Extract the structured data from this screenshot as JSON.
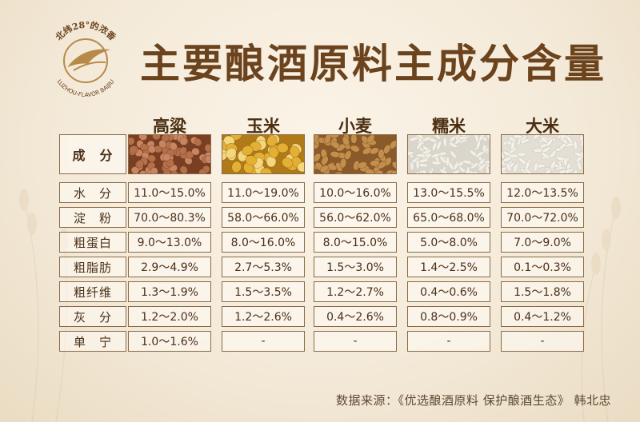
{
  "logo": {
    "arc_text": "北纬28°的浓香",
    "brand_text": "LUZHOU-FLAVOR BAIJIU",
    "colors": {
      "main": "#b88a4a",
      "accent": "#6b431d"
    }
  },
  "title": "主要酿酒原料主成分含量",
  "table": {
    "corner_label": "成　分",
    "columns": [
      {
        "name": "高粱",
        "grain_icon": "sorghum-grains",
        "color": "#b5704a"
      },
      {
        "name": "玉米",
        "grain_icon": "corn-kernels",
        "color": "#e4b033"
      },
      {
        "name": "小麦",
        "grain_icon": "wheat-grains",
        "color": "#c48f4c"
      },
      {
        "name": "糯米",
        "grain_icon": "glutinous-rice-grains",
        "color": "#f1efe8"
      },
      {
        "name": "大米",
        "grain_icon": "rice-grains",
        "color": "#f4f1ea"
      }
    ],
    "rows": [
      {
        "label": "水　分",
        "values": [
          "11.0～15.0%",
          "11.0～19.0%",
          "10.0～16.0%",
          "13.0～15.5%",
          "12.0～13.5%"
        ]
      },
      {
        "label": "淀　粉",
        "values": [
          "70.0～80.3%",
          "58.0～66.0%",
          "56.0～62.0%",
          "65.0～68.0%",
          "70.0～72.0%"
        ]
      },
      {
        "label": "粗蛋白",
        "values": [
          "9.0～13.0%",
          "8.0～16.0%",
          "8.0～15.0%",
          "5.0～8.0%",
          "7.0～9.0%"
        ]
      },
      {
        "label": "粗脂肪",
        "values": [
          "2.9～4.9%",
          "2.7～5.3%",
          "1.5～3.0%",
          "1.4～2.5%",
          "0.1～0.3%"
        ]
      },
      {
        "label": "粗纤维",
        "values": [
          "1.3～1.9%",
          "1.5～3.5%",
          "1.2～2.7%",
          "0.4～0.6%",
          "1.5～1.8%"
        ]
      },
      {
        "label": "灰　分",
        "values": [
          "1.2～2.0%",
          "1.2～2.6%",
          "0.4～2.6%",
          "0.8～0.9%",
          "0.4～1.2%"
        ]
      },
      {
        "label": "单　宁",
        "values": [
          "1.0～1.6%",
          "-",
          "-",
          "-",
          "-"
        ]
      }
    ]
  },
  "source": "数据来源：《优选酿酒原料 保护酿酒生态》 韩北忠"
}
